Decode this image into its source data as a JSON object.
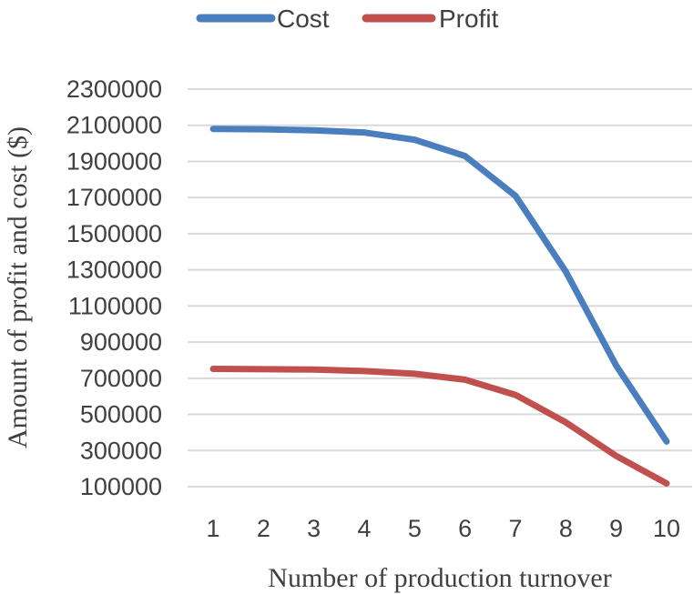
{
  "chart_data": {
    "type": "line",
    "title": "",
    "xlabel": "Number of production turnover",
    "ylabel": "Amount of profit and cost ($)",
    "categories": [
      "1",
      "2",
      "3",
      "4",
      "5",
      "6",
      "7",
      "8",
      "9",
      "10"
    ],
    "yticks": [
      "100000",
      "300000",
      "500000",
      "700000",
      "900000",
      "1100000",
      "1300000",
      "1500000",
      "1700000",
      "1900000",
      "2100000",
      "2300000"
    ],
    "ylim": [
      100000,
      2300000
    ],
    "grid": true,
    "legend_position": "top",
    "series": [
      {
        "name": "Cost",
        "color": "#4a7ebf",
        "values": [
          2080000,
          2078000,
          2072000,
          2060000,
          2020000,
          1930000,
          1710000,
          1290000,
          770000,
          350000
        ]
      },
      {
        "name": "Profit",
        "color": "#c0504d",
        "values": [
          752000,
          750000,
          748000,
          740000,
          725000,
          692000,
          608000,
          456000,
          270000,
          118000
        ]
      }
    ]
  }
}
